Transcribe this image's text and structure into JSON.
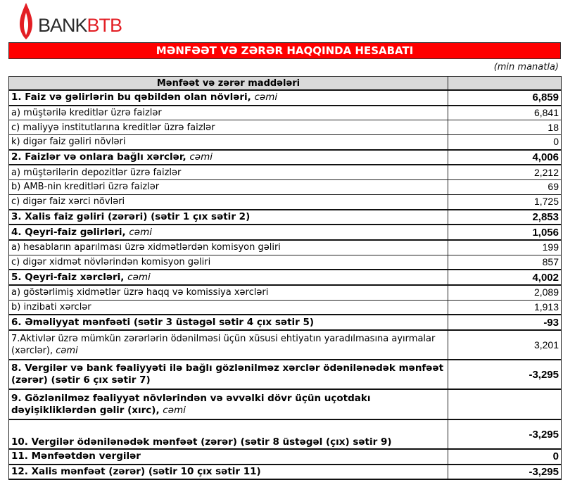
{
  "logo": {
    "brand_a": "BANK",
    "brand_b": "BTB"
  },
  "title": "MƏNFƏƏT VƏ ZƏRƏR HAQQINDA HESABATI",
  "unit": "(min manatla)",
  "header": "Mənfəət və zərər maddələri",
  "rows": [
    {
      "label": "1. Faiz və gəlirlərin bu qəbildən olan növləri,",
      "suffix": "cəmi",
      "value": "6,859",
      "bold": true
    },
    {
      "label": "a) müştərilə kreditlər üzrə faizlər",
      "value": "6,841"
    },
    {
      "label": "c) maliyyə institutlarına kreditlər üzrə faizlər",
      "value": "18"
    },
    {
      "label": "k) digər faiz gəliri növləri",
      "value": "0"
    },
    {
      "label": "2. Faizlər və onlara bağlı xərclər,",
      "suffix": "cəmi",
      "value": "4,006",
      "bold": true
    },
    {
      "label": "a) müştərilərin depozitlər üzrə faizlər",
      "value": "2,212"
    },
    {
      "label": "b) AMB-nin kreditləri üzrə faizlər",
      "value": "69"
    },
    {
      "label": "c) digər faiz xərci növləri",
      "value": "1,725"
    },
    {
      "label": "3. Xalis faiz gəliri (zərəri) (sətir 1 çıx sətir 2)",
      "value": "2,853",
      "bold": true
    },
    {
      "label": "4. Qeyri-faiz gəlirləri,",
      "suffix": "cəmi",
      "value": "1,056",
      "bold": true
    },
    {
      "label": "a) hesabların aparılması üzrə xidmətlərdən komisyon gəliri",
      "value": "199"
    },
    {
      "label": "c) digər xidmət növlərindən komisyon gəliri",
      "value": "857"
    },
    {
      "label": "5. Qeyri-faiz xərcləri,",
      "suffix": "cəmi",
      "value": "4,002",
      "bold": true
    },
    {
      "label": "a) göstərlimiş xidmətlər üzrə haqq və komissiya xərcləri",
      "value": "2,089"
    },
    {
      "label": "b) inzibati xərclər",
      "value": "1,913"
    },
    {
      "label": "6. Əməliyyat mənfəəti (sətir 3 üstəgəl sətir 4 çıx sətir 5)",
      "value": "-93",
      "bold": true
    },
    {
      "label": "7.Aktivlər üzrə mümkün zərərlərin ödənilməsi üçün xüsusi ehtiyatın yaradılmasına ayırmalar (xərclər),",
      "suffix": "cəmi",
      "value": "3,201"
    },
    {
      "label": "8. Vergilər və bank fəaliyyəti ilə bağlı gözlənilməz xərclər ödənilənədək mənfəət (zərər) (sətir 6 çıx sətir 7)",
      "value": "-3,295",
      "bold": true
    },
    {
      "label": "9. Gözlənilməz fəaliyyət növlərindən və əvvəlki dövr üçün uçotdakı dəyişikliklərdən gəlir (xırc),",
      "suffix": "cəmi",
      "value": "",
      "bold": true
    },
    {
      "label": "10. Vergilər ödənilənədək mənfəət (zərər) (sətir 8 üstəgəl (çıx) sətir 9)",
      "value": "-3,295",
      "bold": true
    },
    {
      "label": "11. Mənfəətdən vergilər",
      "value": "0",
      "bold": true
    },
    {
      "label": "12. Xalis mənfəət (zərər) (sətir 10 çıx sətir 11)",
      "value": "-3,295",
      "bold": true
    }
  ],
  "colors": {
    "accent": "#ff0000"
  }
}
